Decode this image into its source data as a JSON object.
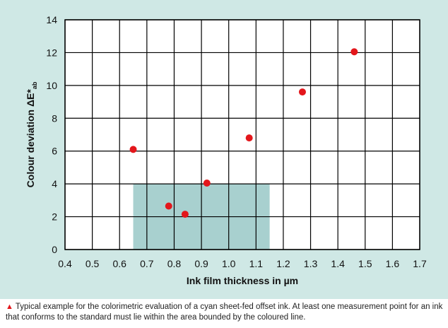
{
  "chart_data": {
    "type": "scatter",
    "xlabel": "Ink film thickness in µm",
    "ylabel_main": "Colour deviation ΔE*",
    "ylabel_sub": "ab",
    "xlim": [
      0.4,
      1.7
    ],
    "ylim": [
      0,
      14
    ],
    "x_ticks": [
      0.4,
      0.5,
      0.6,
      0.7,
      0.8,
      0.9,
      1.0,
      1.1,
      1.2,
      1.3,
      1.4,
      1.5,
      1.6,
      1.7
    ],
    "x_tick_labels": [
      "0.4",
      "0.5",
      "0.6",
      "0.7",
      "0.8",
      "0.9",
      "1.0",
      "1.1",
      "1.2",
      "1.3",
      "1.4",
      "1.5",
      "1.6",
      "1.7"
    ],
    "y_ticks": [
      0,
      2,
      4,
      6,
      8,
      10,
      12,
      14
    ],
    "y_tick_labels": [
      "0",
      "2",
      "4",
      "6",
      "8",
      "10",
      "12",
      "14"
    ],
    "grid": true,
    "x": [
      0.65,
      0.78,
      0.84,
      0.92,
      1.075,
      1.27,
      1.46
    ],
    "y": [
      6.1,
      2.65,
      2.15,
      4.05,
      6.8,
      9.6,
      12.05
    ],
    "tolerance_area": {
      "x": [
        0.65,
        1.15
      ],
      "y": [
        0,
        4
      ]
    },
    "colors": {
      "points": "#e3161b",
      "area": "#a8d0cf",
      "plot_background": "#ffffff",
      "grid": "#000000"
    }
  },
  "caption": {
    "marker": "▲",
    "text": "Typical example for the colorimetric evaluation of a cyan sheet-fed offset ink. At least one measurement point for an ink that conforms to the standard must lie within the area bounded by the coloured line."
  }
}
